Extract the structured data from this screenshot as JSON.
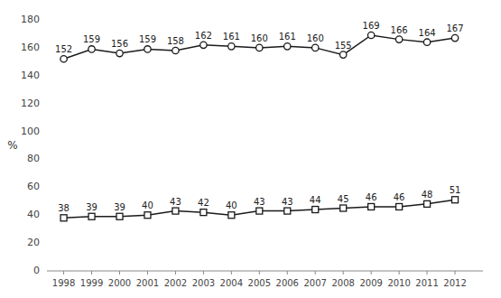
{
  "chart_data": {
    "type": "line",
    "y_label": "%",
    "x": [
      1998,
      1999,
      2000,
      2001,
      2002,
      2003,
      2004,
      2005,
      2006,
      2007,
      2008,
      2009,
      2010,
      2011,
      2012
    ],
    "series": [
      {
        "color": "#1a1a1a",
        "marker": "circle",
        "values": [
          152,
          159,
          156,
          159,
          158,
          162,
          161,
          160,
          161,
          160,
          155,
          169,
          166,
          164,
          167
        ]
      },
      {
        "color": "#1a1a1a",
        "marker": "square",
        "values": [
          38,
          39,
          39,
          40,
          43,
          42,
          40,
          43,
          43,
          44,
          45,
          46,
          46,
          48,
          51
        ]
      }
    ],
    "xlim": [
      1997.4,
      2013.0
    ],
    "xticks": [
      1998,
      1999,
      2000,
      2001,
      2002,
      2003,
      2004,
      2005,
      2006,
      2007,
      2008,
      2009,
      2010,
      2011,
      2012
    ],
    "ylim": [
      0,
      180
    ],
    "yticks": [
      0,
      20,
      40,
      60,
      80,
      100,
      120,
      140,
      160,
      180
    ],
    "grid": false,
    "data_labels": true
  }
}
